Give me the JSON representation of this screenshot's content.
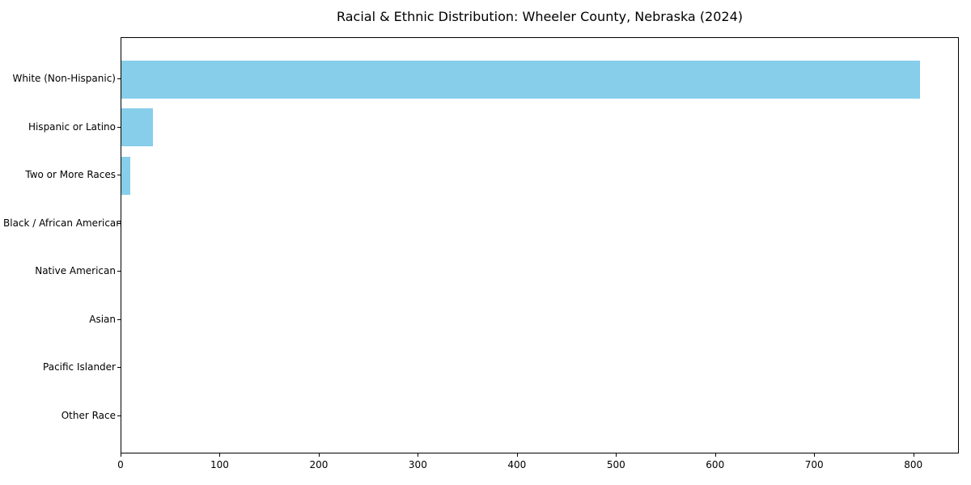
{
  "title": "Racial & Ethnic Distribution: Wheeler County, Nebraska (2024)",
  "chart_data": {
    "type": "bar",
    "orientation": "horizontal",
    "title": "Racial & Ethnic Distribution: Wheeler County, Nebraska (2024)",
    "xlabel": "",
    "ylabel": "",
    "categories": [
      "White (Non-Hispanic)",
      "Hispanic or Latino",
      "Two or More Races",
      "Black / African American",
      "Native American",
      "Asian",
      "Pacific Islander",
      "Other Race"
    ],
    "values": [
      806,
      32,
      9,
      0,
      0,
      0,
      0,
      0
    ],
    "xlim": [
      0,
      846
    ],
    "x_ticks": [
      0,
      100,
      200,
      300,
      400,
      500,
      600,
      700,
      800
    ],
    "bar_color": "#87CEEB",
    "axis_color": "#000000",
    "grid": false,
    "legend": false
  }
}
